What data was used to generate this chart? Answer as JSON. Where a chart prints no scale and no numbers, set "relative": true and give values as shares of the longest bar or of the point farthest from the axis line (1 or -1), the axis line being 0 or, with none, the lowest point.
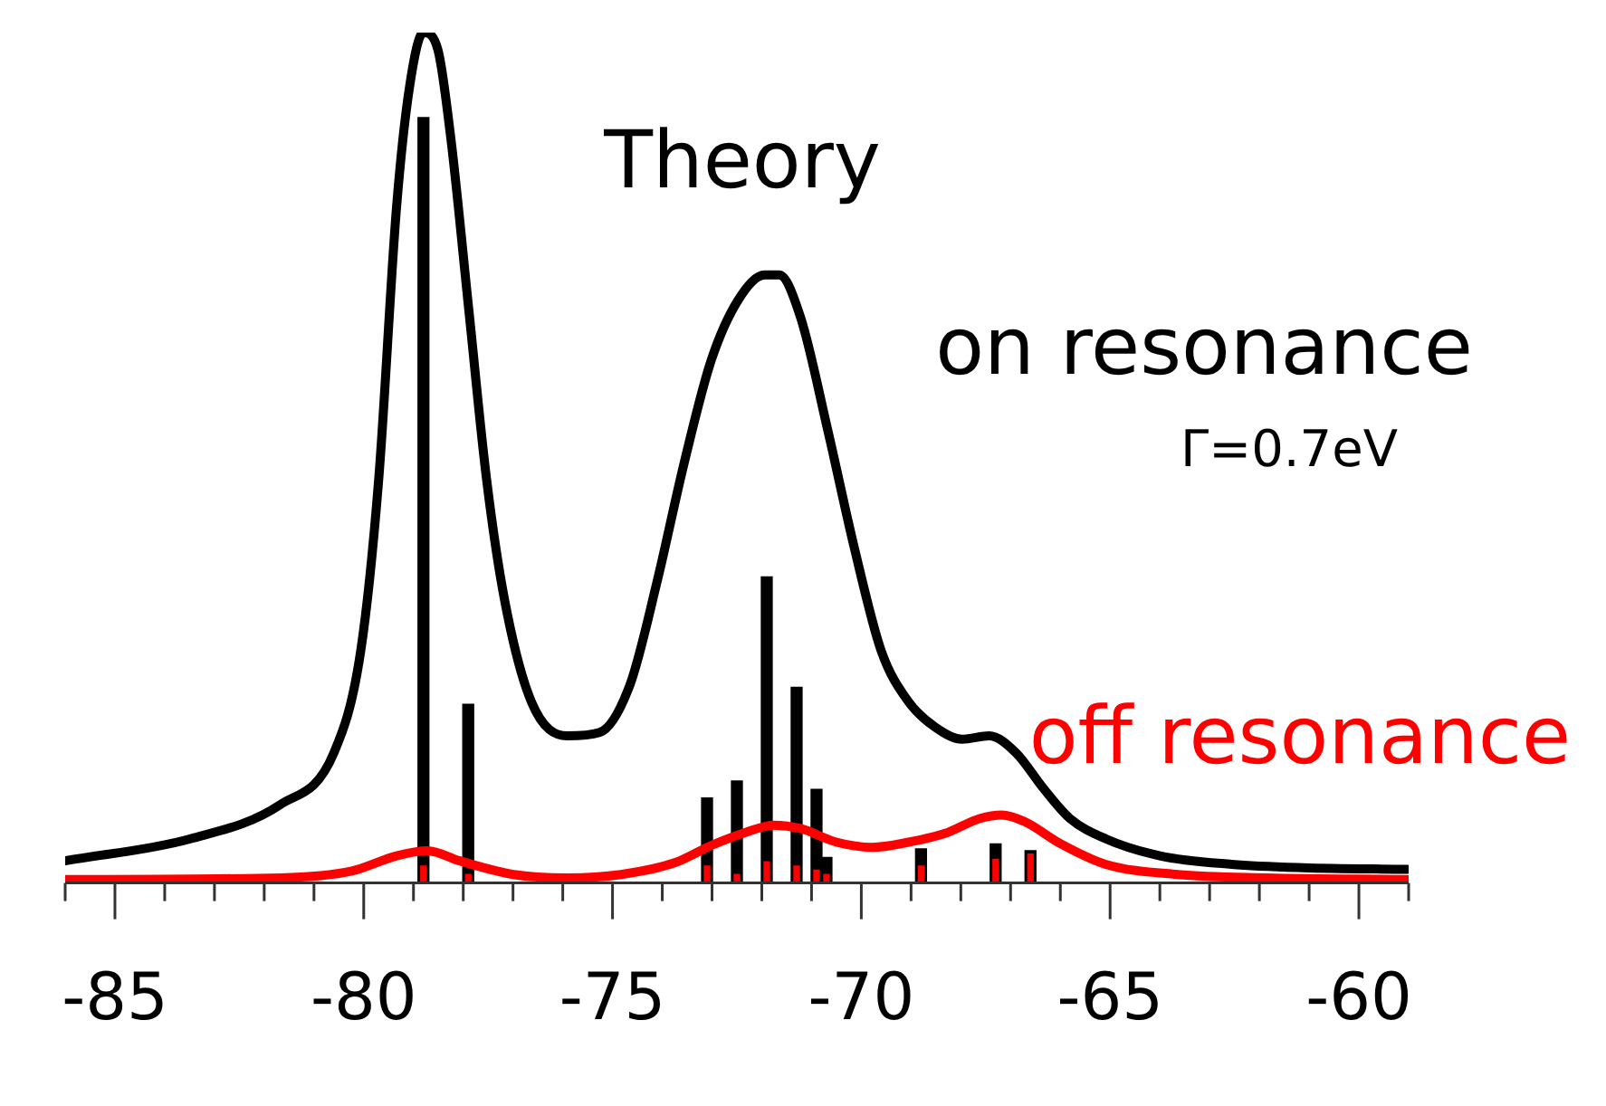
{
  "chart_data": {
    "type": "line",
    "title": "Theory",
    "relative": true,
    "legend": false,
    "marker": "none",
    "line_style": "solid",
    "grid": false,
    "xlim": [
      -86,
      -59
    ],
    "xticks": [
      {
        "value": -86,
        "label": null
      },
      -85,
      {
        "value": -84,
        "label": null
      },
      {
        "value": -83,
        "label": null
      },
      {
        "value": -82,
        "label": null
      },
      {
        "value": -81,
        "label": null
      },
      -80,
      {
        "value": -79,
        "label": null
      },
      {
        "value": -78,
        "label": null
      },
      {
        "value": -77,
        "label": null
      },
      {
        "value": -76,
        "label": null
      },
      -75,
      {
        "value": -74,
        "label": null
      },
      {
        "value": -73,
        "label": null
      },
      {
        "value": -72,
        "label": null
      },
      {
        "value": -71,
        "label": null
      },
      -70,
      {
        "value": -69,
        "label": null
      },
      {
        "value": -68,
        "label": null
      },
      {
        "value": -67,
        "label": null
      },
      {
        "value": -66,
        "label": null
      },
      -65,
      {
        "value": -64,
        "label": null
      },
      {
        "value": -63,
        "label": null
      },
      {
        "value": -62,
        "label": null
      },
      {
        "value": -61,
        "label": null
      },
      -60,
      {
        "value": -59,
        "label": null
      }
    ],
    "annotations": [
      "Γ=0.7eV"
    ],
    "series": [
      {
        "name": "on resonance",
        "color": "#000000",
        "x": [
          -86,
          -83.48,
          -81.68,
          -80.6,
          -80.06,
          -79.7,
          -79.34,
          -79.08,
          -78.8,
          -78.51,
          -78.25,
          -77.89,
          -77.53,
          -77.17,
          -76.63,
          -75.91,
          -75.26,
          -74.65,
          -74.11,
          -73.56,
          -73.02,
          -72.48,
          -71.94,
          -71.65,
          -71.22,
          -70.68,
          -70.14,
          -69.6,
          -69.05,
          -68.51,
          -67.97,
          -67.43,
          -66.89,
          -66.35,
          -65.81,
          -65.09,
          -64,
          -62.56,
          -61.12,
          -59.03
        ],
        "values": [
          0.026,
          0.052,
          0.092,
          0.153,
          0.273,
          0.474,
          0.795,
          0.936,
          1.0,
          0.98,
          0.876,
          0.675,
          0.474,
          0.333,
          0.213,
          0.173,
          0.177,
          0.233,
          0.353,
          0.494,
          0.614,
          0.685,
          0.715,
          0.715,
          0.665,
          0.534,
          0.394,
          0.273,
          0.213,
          0.183,
          0.169,
          0.173,
          0.153,
          0.112,
          0.076,
          0.052,
          0.032,
          0.022,
          0.018,
          0.016
        ]
      },
      {
        "name": "off resonance",
        "color": "#ff0000",
        "x": [
          -86,
          -81.68,
          -80.24,
          -79.34,
          -78.72,
          -78.07,
          -76.99,
          -75.91,
          -74.83,
          -73.74,
          -73.02,
          -72.3,
          -71.76,
          -71.22,
          -70.5,
          -69.78,
          -69.05,
          -68.33,
          -67.61,
          -67.18,
          -66.71,
          -65.99,
          -65.09,
          -63.64,
          -61.84,
          -59.03
        ],
        "values": [
          0.004,
          0.006,
          0.014,
          0.032,
          0.038,
          0.026,
          0.01,
          0.006,
          0.01,
          0.024,
          0.044,
          0.06,
          0.068,
          0.064,
          0.048,
          0.042,
          0.048,
          0.058,
          0.076,
          0.08,
          0.072,
          0.046,
          0.022,
          0.01,
          0.006,
          0.004
        ]
      },
      {
        "type": "bar",
        "color": "#000000",
        "x": [
          -78.8,
          -77.9,
          -73.1,
          -72.5,
          -71.9,
          -71.3,
          -70.9,
          -70.7,
          -68.8,
          -67.3,
          -66.6
        ],
        "values": [
          0.9,
          0.21,
          0.1,
          0.12,
          0.36,
          0.23,
          0.11,
          0.03,
          0.04,
          0.046,
          0.038
        ]
      },
      {
        "type": "bar",
        "color": "#ff0000",
        "x": [
          -78.8,
          -77.9,
          -73.1,
          -72.5,
          -71.9,
          -71.3,
          -70.9,
          -70.7,
          -68.8,
          -67.3,
          -66.6
        ],
        "values": [
          0.02,
          0.01,
          0.02,
          0.01,
          0.025,
          0.02,
          0.015,
          0.01,
          0.02,
          0.028,
          0.034
        ]
      }
    ]
  }
}
